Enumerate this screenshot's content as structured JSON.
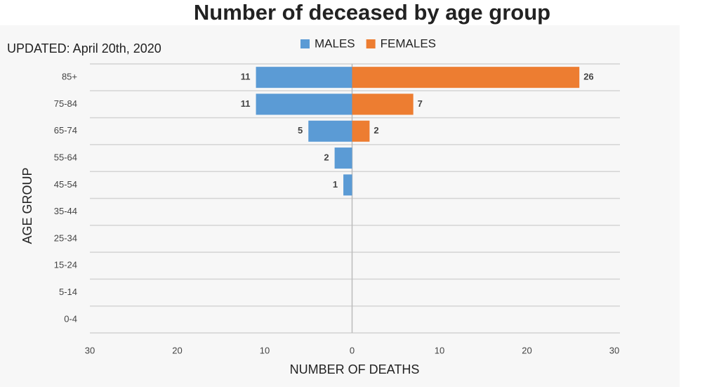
{
  "chart_data": {
    "type": "pyramid",
    "title": "Number of deceased by age group",
    "annotation": "UPDATED: April 20th, 2020",
    "x_label": "NUMBER OF DEATHS",
    "y_label": "AGE GROUP",
    "categories": [
      "85+",
      "75-84",
      "65-74",
      "55-64",
      "45-54",
      "35-44",
      "25-34",
      "15-24",
      "5-14",
      "0-4"
    ],
    "series": [
      {
        "name": "MALES",
        "color": "#5b9bd5",
        "values": [
          -11,
          -11,
          -5,
          -2,
          -1,
          0,
          0,
          0,
          0,
          0
        ],
        "value_labels": [
          "11",
          "11",
          "5",
          "2",
          "1",
          null,
          null,
          null,
          null,
          null
        ]
      },
      {
        "name": "FEMALES",
        "color": "#ed7d31",
        "values": [
          26,
          7,
          2,
          0,
          0,
          0,
          0,
          0,
          0,
          0
        ],
        "value_labels": [
          "26",
          "7",
          "2",
          null,
          null,
          null,
          null,
          null,
          null,
          null
        ]
      }
    ],
    "xlim": [
      -30,
      30
    ],
    "xticks": [
      {
        "value": -30,
        "label": "30"
      },
      {
        "value": -20,
        "label": "20"
      },
      {
        "value": -10,
        "label": "10"
      },
      0,
      10,
      20,
      30
    ]
  }
}
